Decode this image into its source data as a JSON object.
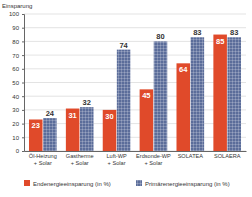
{
  "chart_data": {
    "type": "bar",
    "y_label": "Einsparung",
    "categories": [
      "Öl-Heizung + Solar",
      "Gastherme + Solar",
      "Luft-WP + Solar",
      "Erdsonde-WP + Solar",
      "SOLATEA",
      "SOLAERA"
    ],
    "series": [
      {
        "name": "Endenergieeinsparung (in %)",
        "color": "#e04a2a",
        "values": [
          23,
          31,
          30,
          45,
          64,
          85
        ]
      },
      {
        "name": "Primärenergieeinsparung (in %)",
        "color": "#5b6d9a",
        "values": [
          24,
          32,
          74,
          80,
          83,
          83
        ]
      }
    ],
    "ylim": [
      0,
      100
    ],
    "yticks": [
      0,
      10,
      20,
      30,
      40,
      50,
      60,
      70,
      80,
      90,
      100
    ],
    "grid": true,
    "data_labels": true,
    "legend": "bottom"
  }
}
